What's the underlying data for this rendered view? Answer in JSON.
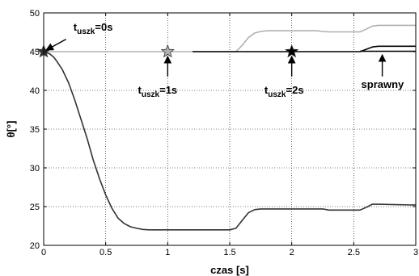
{
  "chart_data": {
    "type": "line",
    "title": "",
    "xlabel": "czas [s]",
    "ylabel": "θ[°]",
    "xlim": [
      0,
      3
    ],
    "ylim": [
      20,
      50
    ],
    "xticks": [
      0,
      0.5,
      1,
      1.5,
      2,
      2.5,
      3
    ],
    "xtick_labels": [
      "0",
      "0.5",
      "1",
      "1.5",
      "2",
      "2.5",
      "3"
    ],
    "yticks": [
      20,
      25,
      30,
      35,
      40,
      45,
      50
    ],
    "ytick_labels": [
      "20",
      "25",
      "30",
      "35",
      "40",
      "45",
      "50"
    ],
    "grid": true,
    "series": [
      {
        "color": "#333333",
        "x": [
          0,
          0.02,
          0.05,
          0.08,
          0.1,
          0.15,
          0.2,
          0.25,
          0.3,
          0.35,
          0.4,
          0.45,
          0.5,
          0.55,
          0.6,
          0.65,
          0.7,
          0.75,
          0.8,
          0.85,
          0.9,
          0.95,
          1.0,
          1.5,
          1.55,
          1.6,
          1.65,
          1.7,
          1.75,
          1.8,
          2.25,
          2.3,
          2.55,
          2.6,
          2.65,
          2.7,
          3.0
        ],
        "y": [
          45,
          44.9,
          44.7,
          44.3,
          43.9,
          42.7,
          41.0,
          38.8,
          36.3,
          33.8,
          31.0,
          28.6,
          26.5,
          24.8,
          23.5,
          22.8,
          22.4,
          22.2,
          22.05,
          22.0,
          22.0,
          22.0,
          22.0,
          22.0,
          22.2,
          23.2,
          24.2,
          24.6,
          24.7,
          24.7,
          24.7,
          24.55,
          24.55,
          24.9,
          25.3,
          25.3,
          25.2
        ]
      },
      {
        "color": "#b0b0b0",
        "x": [
          0,
          1.2,
          1.4,
          1.55,
          1.6,
          1.65,
          1.7,
          1.75,
          1.8,
          2.2,
          2.25,
          2.3,
          2.55,
          2.6,
          2.65,
          2.7,
          3.0
        ],
        "y": [
          45,
          45,
          45,
          45,
          45.8,
          46.8,
          47.4,
          47.6,
          47.7,
          47.7,
          47.6,
          47.55,
          47.55,
          47.9,
          48.3,
          48.4,
          48.4
        ]
      },
      {
        "color": "#000000",
        "x": [
          1.2,
          1.5,
          2.0,
          2.3,
          2.55,
          2.6,
          2.65,
          2.7,
          3.0
        ],
        "y": [
          45,
          45,
          45,
          45,
          45,
          45.3,
          45.6,
          45.7,
          45.7
        ]
      },
      {
        "color": "#000000",
        "x": [
          2.55,
          3.0
        ],
        "y": [
          45.05,
          45.05
        ]
      }
    ],
    "markers": [
      {
        "name": "star-t0",
        "x": 0,
        "y": 45,
        "color": "#333333"
      },
      {
        "name": "star-t1",
        "x": 1,
        "y": 45,
        "color": "#b0b0b0"
      },
      {
        "name": "star-t2",
        "x": 2,
        "y": 45,
        "color": "#000000"
      }
    ],
    "annotations": [
      {
        "name": "annot-t0",
        "main": "t",
        "sub": "uszk",
        "suffix": "=0s",
        "text_x": 0.24,
        "text_y": 47.7,
        "arrow_from": [
          0.18,
          46.6
        ],
        "arrow_to": [
          0.02,
          45.2
        ]
      },
      {
        "name": "annot-t1",
        "main": "t",
        "sub": "uszk",
        "suffix": "=1s",
        "text_x": 0.76,
        "text_y": 39.6,
        "arrow_from": [
          1.0,
          41.8
        ],
        "arrow_to": [
          1.0,
          44.4
        ]
      },
      {
        "name": "annot-t2",
        "main": "t",
        "sub": "uszk",
        "suffix": "=2s",
        "text_x": 1.78,
        "text_y": 39.6,
        "arrow_from": [
          2.0,
          41.8
        ],
        "arrow_to": [
          2.0,
          44.4
        ]
      },
      {
        "name": "annot-sprawny",
        "main": "sprawny",
        "sub": "",
        "suffix": "",
        "text_x": 2.56,
        "text_y": 40.3,
        "arrow_from": [
          2.73,
          41.8
        ],
        "arrow_to": [
          2.73,
          44.6
        ]
      }
    ]
  }
}
